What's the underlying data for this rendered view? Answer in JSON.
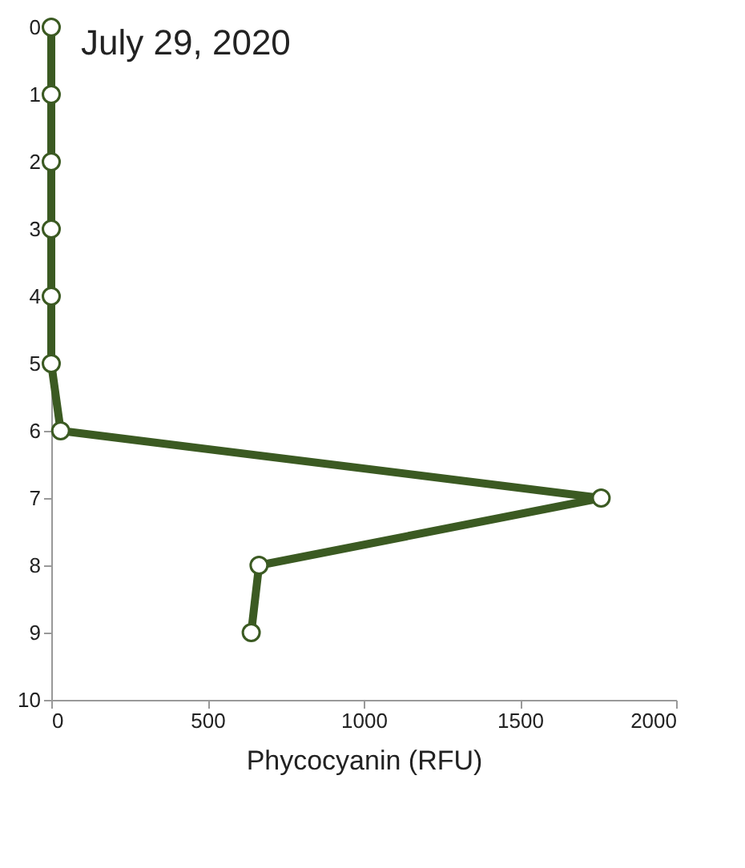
{
  "chart_data": {
    "type": "line",
    "title": "July 29, 2020",
    "xlabel": "Phycocyanin (RFU)",
    "series": [
      {
        "color": "#3b5a22",
        "x": [
          0,
          0,
          0,
          0,
          0,
          0,
          30,
          1760,
          665,
          640
        ],
        "values": [
          0,
          1,
          2,
          3,
          4,
          5,
          6,
          7,
          8,
          9
        ]
      }
    ],
    "xlim": [
      0,
      2000
    ],
    "xticks": [
      0,
      500,
      1000,
      1500,
      2000
    ],
    "ylim": [
      10,
      0
    ],
    "yticks": [
      0,
      1,
      2,
      3,
      4,
      5,
      6,
      7,
      8,
      9,
      10
    ],
    "marker": "circle",
    "line_style": "solid",
    "grid": false
  }
}
